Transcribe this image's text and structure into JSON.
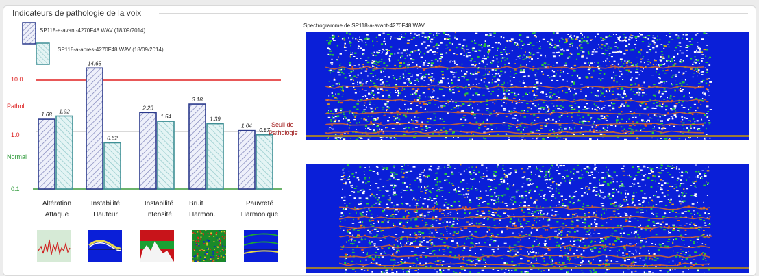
{
  "window": {
    "group_title": "Indicateurs de pathologie de la voix"
  },
  "legend": {
    "series1": "SP118-a-avant-4270F48.WAV (18/09/2014)",
    "series2": "SP118-a-apres-4270F48.WAV (18/09/2014)"
  },
  "axis": {
    "tick_10": "10.0",
    "tick_1": "1.0",
    "tick_01": "0.1",
    "pathol": "Pathol.",
    "normal": "Normal",
    "threshold_line1": "Seuil de",
    "threshold_line2": "Pathologie"
  },
  "categories": [
    {
      "line1": "Altération",
      "line2": "Attaque"
    },
    {
      "line1": "Instabilité",
      "line2": "Hauteur"
    },
    {
      "line1": "Instabilité",
      "line2": "Intensité"
    },
    {
      "line1": "Bruit",
      "line2": "Harmon."
    },
    {
      "line1": "Pauvreté",
      "line2": "Harmonique"
    }
  ],
  "chart_data": {
    "type": "bar",
    "scale": "log",
    "ylim": [
      0.1,
      30
    ],
    "categories": [
      "Altération Attaque",
      "Instabilité Hauteur",
      "Instabilité Intensité",
      "Bruit Harmon.",
      "Pauvreté Harmonique"
    ],
    "series": [
      {
        "name": "SP118-a-avant-4270F48.WAV (18/09/2014)",
        "values": [
          1.68,
          14.65,
          2.23,
          3.18,
          1.04
        ],
        "labels": [
          "1.68",
          "14.65",
          "2.23",
          "3.18",
          "1.04"
        ]
      },
      {
        "name": "SP118-a-apres-4270F48.WAV (18/09/2014)",
        "values": [
          1.92,
          0.62,
          1.54,
          1.39,
          0.87
        ],
        "labels": [
          "1.92",
          "0.62",
          "1.54",
          "1.39",
          "0.87"
        ]
      }
    ],
    "reference_lines": [
      10,
      1
    ]
  },
  "colors": {
    "series1_stroke": "#2b3a8c",
    "series1_hatch": "#7a7fb8",
    "series1_fill": "#eef0fa",
    "series2_stroke": "#3f8f95",
    "series2_hatch": "#8cc6c8",
    "series2_fill": "#e4f4f4",
    "pathol_line": "#e02020",
    "normal_text": "#2e9a3a",
    "baseline": "#3a9a3a",
    "spectrogram_bg": "#0a1fd8"
  },
  "spectrograms": {
    "top_title": "Spectrogramme de SP118-a-avant-4270F48.WAV"
  },
  "thumbnails": [
    {
      "icon": "attack-waveform-icon"
    },
    {
      "icon": "pitch-instability-icon"
    },
    {
      "icon": "intensity-instability-icon"
    },
    {
      "icon": "harmonic-noise-icon"
    },
    {
      "icon": "harmonic-poverty-icon"
    }
  ]
}
